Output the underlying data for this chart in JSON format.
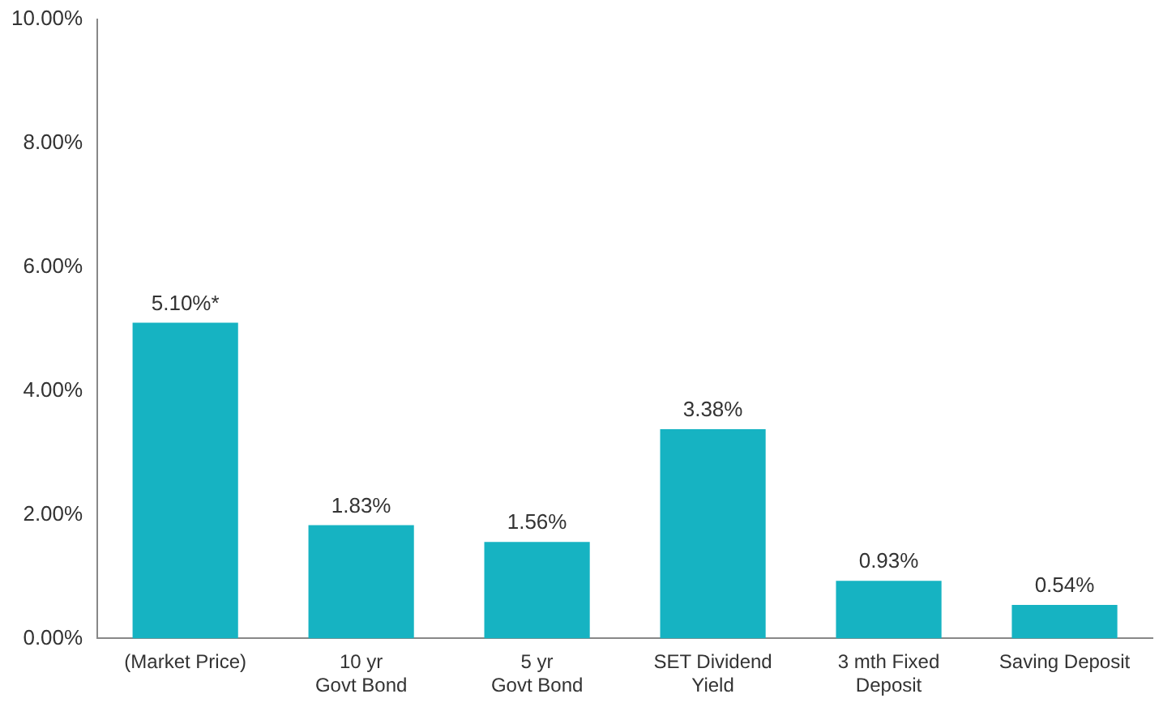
{
  "chart_data": {
    "type": "bar",
    "categories": [
      "(Market Price)",
      "10 yr\nGovt Bond",
      "5 yr\nGovt Bond",
      "SET Dividend\nYield",
      "3 mth Fixed\nDeposit",
      "Saving Deposit"
    ],
    "values": [
      5.1,
      1.83,
      1.56,
      3.38,
      0.93,
      0.54
    ],
    "value_labels": [
      "5.10%*",
      "1.83%",
      "1.56%",
      "3.38%",
      "0.93%",
      "0.54%"
    ],
    "color": "#16b3c2",
    "ylim": [
      0,
      10
    ],
    "yticks": [
      {
        "value": 0,
        "label": "0.00%"
      },
      {
        "value": 2,
        "label": "2.00%"
      },
      {
        "value": 4,
        "label": "4.00%"
      },
      {
        "value": 6,
        "label": "6.00%"
      },
      {
        "value": 8,
        "label": "8.00%"
      },
      {
        "value": 10,
        "label": "10.00%"
      }
    ],
    "grid": false,
    "legend": false
  }
}
